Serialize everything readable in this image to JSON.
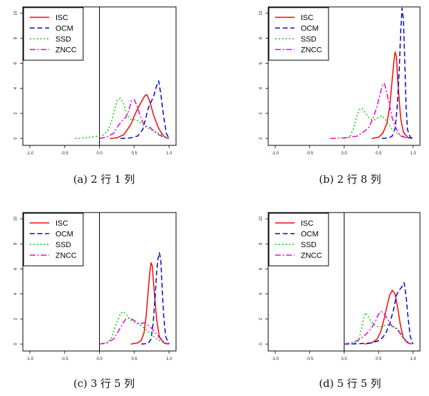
{
  "colors": {
    "ISC": "#ff0000",
    "OCM": "#0000cc",
    "SSD": "#00cc00",
    "ZNCC": "#e000e0"
  },
  "chart_data": [
    {
      "type": "line",
      "caption": "(a) 2 行 1 列",
      "xlim": [
        -1.0,
        1.0
      ],
      "ylim": [
        0,
        10.5
      ],
      "x_ticks": [
        "-1.0",
        "-0.5",
        "0.0",
        "0.5",
        "1.0"
      ],
      "y_ticks": [
        "0",
        "2",
        "4",
        "6",
        "8",
        "10"
      ],
      "vline_x": 0.0,
      "legend": {
        "position": "top-left",
        "entries": [
          "ISC",
          "OCM",
          "SSD",
          "ZNCC"
        ]
      },
      "series": [
        {
          "name": "ISC",
          "x": [
            0.15,
            0.25,
            0.35,
            0.45,
            0.5,
            0.55,
            0.6,
            0.65,
            0.68,
            0.72,
            0.78,
            0.85,
            0.92,
            0.98
          ],
          "y": [
            0,
            0.05,
            0.3,
            1.1,
            1.8,
            2.4,
            2.9,
            3.4,
            3.5,
            3.0,
            1.8,
            0.8,
            0.2,
            0
          ]
        },
        {
          "name": "OCM",
          "x": [
            0.3,
            0.45,
            0.55,
            0.62,
            0.66,
            0.7,
            0.74,
            0.78,
            0.82,
            0.85,
            0.88,
            0.92,
            0.96,
            1.0
          ],
          "y": [
            0,
            0.05,
            0.2,
            0.7,
            1.5,
            2.4,
            2.9,
            3.4,
            4.2,
            4.6,
            3.6,
            1.8,
            0.4,
            0
          ]
        },
        {
          "name": "SSD",
          "x": [
            -0.35,
            -0.2,
            -0.05,
            0.05,
            0.12,
            0.18,
            0.22,
            0.26,
            0.3,
            0.34,
            0.38,
            0.42,
            0.46,
            0.5,
            0.56,
            0.62,
            0.7,
            0.78,
            0.86,
            0.95,
            1.0
          ],
          "y": [
            0,
            0.05,
            0.15,
            0.25,
            0.6,
            1.5,
            2.4,
            3.1,
            3.2,
            2.8,
            2.2,
            1.7,
            1.5,
            1.5,
            1.4,
            1.1,
            0.8,
            0.6,
            0.4,
            0.1,
            0
          ]
        },
        {
          "name": "ZNCC",
          "x": [
            0.0,
            0.1,
            0.2,
            0.28,
            0.34,
            0.38,
            0.42,
            0.46,
            0.5,
            0.54,
            0.58,
            0.62,
            0.66,
            0.72,
            0.78,
            0.85,
            0.92,
            1.0
          ],
          "y": [
            0,
            0.1,
            0.4,
            1.1,
            1.5,
            1.7,
            2.2,
            3.0,
            3.1,
            2.6,
            1.9,
            1.3,
            1.0,
            0.9,
            0.6,
            0.3,
            0.1,
            0
          ]
        }
      ]
    },
    {
      "type": "line",
      "caption": "(b) 2 行 8 列",
      "xlim": [
        -1.0,
        1.0
      ],
      "ylim": [
        0,
        10.5
      ],
      "x_ticks": [
        "-1.0",
        "-0.5",
        "0.0",
        "0.5",
        "1.0"
      ],
      "y_ticks": [
        "0",
        "2",
        "4",
        "6",
        "8",
        "10"
      ],
      "vline_x": null,
      "legend": {
        "position": "top-left",
        "entries": [
          "ISC",
          "OCM",
          "SSD",
          "ZNCC"
        ]
      },
      "series": [
        {
          "name": "ISC",
          "x": [
            0.4,
            0.5,
            0.56,
            0.62,
            0.66,
            0.7,
            0.72,
            0.74,
            0.76,
            0.78,
            0.82,
            0.86,
            0.92,
            0.98
          ],
          "y": [
            0,
            0.1,
            0.4,
            1.2,
            2.5,
            4.8,
            6.0,
            6.9,
            6.5,
            4.5,
            1.6,
            0.5,
            0.1,
            0
          ]
        },
        {
          "name": "OCM",
          "x": [
            0.55,
            0.65,
            0.7,
            0.74,
            0.77,
            0.8,
            0.82,
            0.84,
            0.86,
            0.88,
            0.9,
            0.92,
            0.96,
            1.0
          ],
          "y": [
            0,
            0.05,
            0.2,
            0.8,
            2.5,
            5.5,
            8.5,
            10.4,
            9.5,
            6.0,
            2.5,
            0.7,
            0.1,
            0
          ]
        },
        {
          "name": "SSD",
          "x": [
            0.0,
            0.08,
            0.14,
            0.18,
            0.22,
            0.26,
            0.3,
            0.35,
            0.4,
            0.45,
            0.5,
            0.55,
            0.6,
            0.66,
            0.72,
            0.8,
            0.9,
            0.96
          ],
          "y": [
            0,
            0.1,
            0.8,
            1.7,
            2.3,
            2.4,
            2.1,
            1.7,
            1.5,
            1.5,
            1.7,
            1.8,
            1.5,
            1.0,
            0.6,
            0.3,
            0.1,
            0
          ]
        },
        {
          "name": "ZNCC",
          "x": [
            -0.2,
            0.0,
            0.2,
            0.35,
            0.42,
            0.48,
            0.52,
            0.56,
            0.58,
            0.6,
            0.62,
            0.66,
            0.7,
            0.76,
            0.82,
            0.9,
            0.98
          ],
          "y": [
            0,
            0.05,
            0.2,
            0.8,
            1.6,
            2.6,
            3.5,
            4.3,
            4.4,
            4.1,
            3.6,
            2.6,
            1.6,
            0.7,
            0.2,
            0.05,
            0
          ]
        }
      ]
    },
    {
      "type": "line",
      "caption": "(c) 3 行 5 列",
      "xlim": [
        -1.0,
        1.0
      ],
      "ylim": [
        0,
        10.5
      ],
      "x_ticks": [
        "-1.0",
        "-0.5",
        "0.0",
        "0.5",
        "1.0"
      ],
      "y_ticks": [
        "0",
        "2",
        "4",
        "6",
        "8",
        "10"
      ],
      "vline_x": 0.0,
      "legend": {
        "position": "top-left",
        "entries": [
          "ISC",
          "OCM",
          "SSD",
          "ZNCC"
        ]
      },
      "series": [
        {
          "name": "ISC",
          "x": [
            0.45,
            0.55,
            0.6,
            0.64,
            0.67,
            0.7,
            0.72,
            0.74,
            0.76,
            0.78,
            0.82,
            0.86,
            0.92,
            0.98
          ],
          "y": [
            0,
            0.1,
            0.3,
            0.9,
            2.2,
            4.2,
            5.6,
            6.5,
            6.2,
            4.6,
            2.0,
            0.6,
            0.1,
            0
          ]
        },
        {
          "name": "OCM",
          "x": [
            0.6,
            0.7,
            0.74,
            0.77,
            0.8,
            0.82,
            0.84,
            0.86,
            0.88,
            0.9,
            0.92,
            0.95,
            1.0
          ],
          "y": [
            0,
            0.05,
            0.4,
            1.6,
            3.8,
            5.6,
            6.8,
            7.3,
            6.8,
            4.6,
            2.4,
            0.6,
            0
          ]
        },
        {
          "name": "SSD",
          "x": [
            0.05,
            0.12,
            0.18,
            0.24,
            0.3,
            0.34,
            0.38,
            0.42,
            0.48,
            0.55,
            0.62,
            0.7,
            0.78,
            0.86,
            0.94,
            1.0
          ],
          "y": [
            0,
            0.1,
            0.6,
            1.6,
            2.4,
            2.6,
            2.4,
            2.1,
            1.8,
            1.6,
            1.4,
            1.0,
            0.6,
            0.3,
            0.1,
            0
          ]
        },
        {
          "name": "ZNCC",
          "x": [
            0.0,
            0.1,
            0.2,
            0.28,
            0.34,
            0.38,
            0.42,
            0.46,
            0.52,
            0.58,
            0.64,
            0.7,
            0.76,
            0.82,
            0.88,
            0.94,
            1.0
          ],
          "y": [
            0,
            0.1,
            0.4,
            1.1,
            1.7,
            2.0,
            2.1,
            2.0,
            1.8,
            1.6,
            1.7,
            1.5,
            1.2,
            0.8,
            0.4,
            0.1,
            0
          ]
        }
      ]
    },
    {
      "type": "line",
      "caption": "(d) 5 行 5 列",
      "xlim": [
        -1.0,
        1.0
      ],
      "ylim": [
        0,
        10.5
      ],
      "x_ticks": [
        "-1.0",
        "-0.5",
        "0.0",
        "0.5",
        "1.0"
      ],
      "y_ticks": [
        "0",
        "2",
        "4",
        "6",
        "8",
        "10"
      ],
      "vline_x": 0.0,
      "legend": {
        "position": "top-left",
        "entries": [
          "ISC",
          "OCM",
          "SSD",
          "ZNCC"
        ]
      },
      "series": [
        {
          "name": "ISC",
          "x": [
            0.3,
            0.4,
            0.48,
            0.54,
            0.58,
            0.62,
            0.66,
            0.7,
            0.74,
            0.78,
            0.82,
            0.86,
            0.92,
            0.98
          ],
          "y": [
            0,
            0.1,
            0.4,
            1.1,
            2.0,
            3.0,
            3.9,
            4.3,
            4.0,
            2.8,
            1.4,
            0.5,
            0.1,
            0
          ]
        },
        {
          "name": "OCM",
          "x": [
            0.0,
            0.2,
            0.4,
            0.52,
            0.6,
            0.66,
            0.72,
            0.76,
            0.8,
            0.84,
            0.87,
            0.9,
            0.93,
            0.96,
            1.0
          ],
          "y": [
            0,
            0.02,
            0.1,
            0.3,
            0.8,
            1.6,
            2.8,
            3.9,
            4.3,
            4.6,
            4.9,
            3.8,
            2.0,
            0.6,
            0
          ]
        },
        {
          "name": "SSD",
          "x": [
            0.1,
            0.2,
            0.24,
            0.28,
            0.31,
            0.34,
            0.38,
            0.42,
            0.48,
            0.54,
            0.6,
            0.66,
            0.72,
            0.78,
            0.82,
            0.86,
            0.92,
            0.98
          ],
          "y": [
            0,
            0.2,
            0.9,
            2.0,
            2.5,
            2.3,
            1.9,
            1.6,
            1.4,
            1.4,
            1.5,
            1.6,
            1.4,
            1.2,
            0.9,
            0.5,
            0.2,
            0
          ]
        },
        {
          "name": "ZNCC",
          "x": [
            0.0,
            0.1,
            0.2,
            0.28,
            0.34,
            0.4,
            0.46,
            0.5,
            0.54,
            0.58,
            0.62,
            0.66,
            0.7,
            0.74,
            0.78,
            0.84,
            0.9,
            0.96,
            1.0
          ],
          "y": [
            0,
            0.1,
            0.3,
            0.6,
            0.9,
            1.3,
            1.9,
            2.4,
            2.6,
            2.4,
            2.1,
            1.7,
            1.4,
            1.3,
            1.1,
            0.6,
            0.2,
            0.05,
            0
          ]
        }
      ]
    }
  ]
}
